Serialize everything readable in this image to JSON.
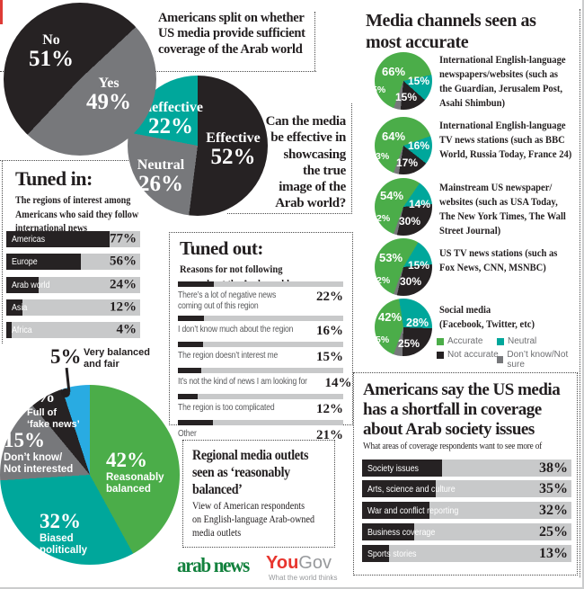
{
  "palette": {
    "green": "#4bad49",
    "teal": "#00a79b",
    "dark": "#262223",
    "gray": "#77787b",
    "light_gray": "#c8c9ca",
    "blue": "#29abe2",
    "red_corner": "#de3b36",
    "text_dark": "#221e1f",
    "text_gray": "#58595b",
    "legend_text": "#6d6e71",
    "arabnews_green": "#12813d",
    "yougov_red": "#e8352e",
    "yougov_gray": "#97999c"
  },
  "chart_data": [
    {
      "id": "coverage_split",
      "type": "pie",
      "title": "Americans split on whether\nUS media provide sufficient\ncoverage of the Arab world",
      "labels": [
        "No",
        "Yes"
      ],
      "values": [
        51,
        49
      ],
      "display": [
        "51%",
        "49%"
      ],
      "colors": [
        "#262223",
        "#77787b"
      ]
    },
    {
      "id": "effectiveness",
      "type": "pie",
      "title": "Can the media\nbe effective in\nshowcasing\nthe true\nimage of the\nArab world?",
      "labels": [
        "Effective",
        "Neutral",
        "Ineffective"
      ],
      "values": [
        52,
        26,
        22
      ],
      "display": [
        "52%",
        "26%",
        "22%"
      ],
      "colors": [
        "#262223",
        "#77787b",
        "#00a79b"
      ]
    },
    {
      "id": "tuned_in",
      "type": "bar",
      "title": "Tuned in:",
      "subtitle": "The regions of interest among\nAmericans who said they follow\ninternational news",
      "categories": [
        "Americas",
        "Europe",
        "Arab world",
        "Asia",
        "Africa"
      ],
      "values": [
        77,
        56,
        24,
        12,
        4
      ],
      "display": [
        "77%",
        "56%",
        "24%",
        "12%",
        "4%"
      ],
      "bar_color": "#262223",
      "track_color": "#c8c9ca"
    },
    {
      "id": "media_accuracy",
      "type": "pie",
      "title": "Media channels seen as\nmost accurate",
      "legend": [
        "Accurate",
        "Neutral",
        "Not accurate",
        "Don’t know/Not sure"
      ],
      "colors": [
        "#4bad49",
        "#00a79b",
        "#262223",
        "#77787b"
      ],
      "series_order": [
        "Accurate",
        "Neutral",
        "Not accurate",
        "Don't know/Not sure"
      ],
      "channels": [
        {
          "name": "International English-language\nnewspapers/websites (such as\nthe Guardian, Jerusalem Post,\nAsahi Shimbun)",
          "values": [
            66,
            15,
            15,
            5
          ],
          "display": [
            "66%",
            "15%",
            "15%",
            "5%"
          ]
        },
        {
          "name": "International English-language\nTV news stations (such as BBC\nWorld, Russia Today, France 24)",
          "values": [
            64,
            16,
            17,
            3
          ],
          "display": [
            "64%",
            "16%",
            "17%",
            "3%"
          ]
        },
        {
          "name": "Mainstream US newspaper/\nwebsites (such as USA Today,\nThe New York Times, The Wall\nStreet Journal)",
          "values": [
            54,
            14,
            30,
            2
          ],
          "display": [
            "54%",
            "14%",
            "30%",
            "2%"
          ]
        },
        {
          "name": "US TV news stations (such as\nFox News, CNN, MSNBC)",
          "values": [
            53,
            15,
            30,
            2
          ],
          "display": [
            "53%",
            "15%",
            "30%",
            "2%"
          ]
        },
        {
          "name": "Social media\n(Facebook, Twitter, etc)",
          "values": [
            42,
            28,
            25,
            5
          ],
          "display": [
            "42%",
            "28%",
            "25%",
            "5%"
          ]
        }
      ]
    },
    {
      "id": "tuned_out",
      "type": "bar",
      "title": "Tuned out:",
      "subtitle": "Reasons for not following\nnews about the Arab world",
      "categories": [
        "There’s a lot of negative news\ncoming out of this region",
        "I don’t know much about the region",
        "The region doesn’t interest me",
        "It’s not the kind of news I am looking for",
        "The region is too complicated",
        "Other"
      ],
      "values": [
        22,
        16,
        15,
        14,
        12,
        21
      ],
      "display": [
        "22%",
        "16%",
        "15%",
        "14%",
        "12%",
        "21%"
      ]
    },
    {
      "id": "balance",
      "type": "pie",
      "title": "Regional media outlets\nseen as ‘reasonably\nbalanced’",
      "subtitle": "View of American respondents\non English-language Arab-owned\nmedia outlets",
      "labels": [
        "Reasonably\nbalanced",
        "Biased\npolitically",
        "Don’t know/\nNot interested",
        "Full of\n‘fake news’",
        "Very balanced\nand fair"
      ],
      "values": [
        42,
        32,
        15,
        6,
        5
      ],
      "display": [
        "42%",
        "32%",
        "15%",
        "6%",
        "5%"
      ],
      "colors": [
        "#4bad49",
        "#00a79b",
        "#77787b",
        "#262223",
        "#29abe2"
      ]
    },
    {
      "id": "shortfall",
      "type": "bar",
      "title": "Americans say the US media\nhas a shortfall in coverage\nabout Arab society issues",
      "subtitle": "What areas of coverage respondents want to see more of",
      "categories": [
        "Society issues",
        "Arts, science and culture",
        "War and conflict reporting",
        "Business coverage",
        "Sports stories"
      ],
      "values": [
        38,
        35,
        32,
        25,
        13
      ],
      "display": [
        "38%",
        "35%",
        "32%",
        "25%",
        "13%"
      ]
    }
  ],
  "logos": {
    "arab_news": "arab news",
    "yougov_you": "You",
    "yougov_gov": "Gov",
    "yougov_tagline": "What the world thinks"
  }
}
